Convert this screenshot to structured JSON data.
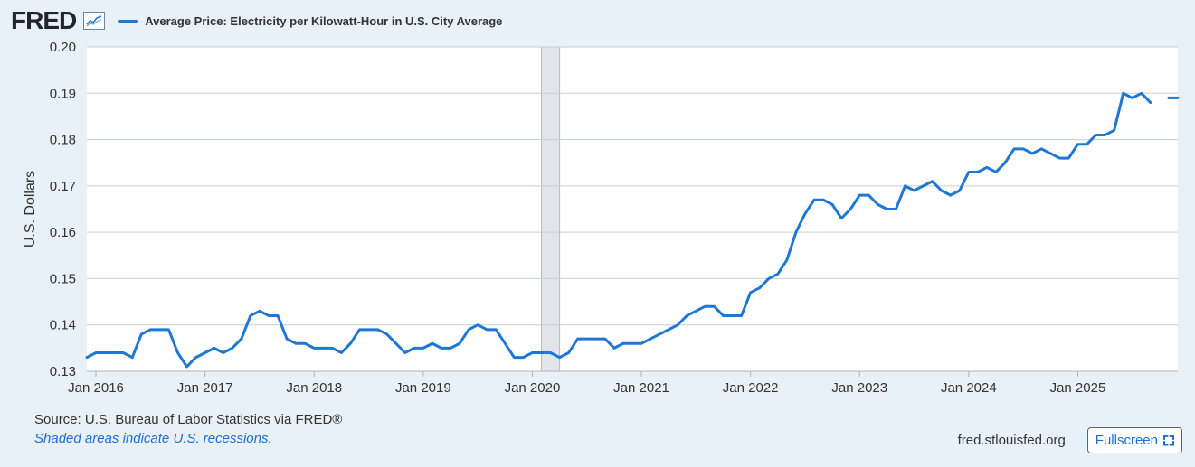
{
  "header": {
    "logo_text": "FRED",
    "logo_icon": "line-chart-icon",
    "legend_label": "Average Price: Electricity per Kilowatt-Hour in U.S. City Average",
    "legend_color": "#1f77d4"
  },
  "footer": {
    "source": "Source: U.S. Bureau of Labor Statistics via FRED®",
    "note": "Shaded areas indicate U.S. recessions.",
    "site": "fred.stlouisfed.org",
    "fullscreen_label": "Fullscreen",
    "fullscreen_icon": "fullscreen-icon"
  },
  "chart_data": {
    "type": "line",
    "ylabel": "U.S. Dollars",
    "ylim": [
      0.13,
      0.2
    ],
    "yticks": [
      0.13,
      0.14,
      0.15,
      0.16,
      0.17,
      0.18,
      0.19,
      0.2
    ],
    "ytick_labels": [
      "0.13",
      "0.14",
      "0.15",
      "0.16",
      "0.17",
      "0.18",
      "0.19",
      "0.20"
    ],
    "xlim": [
      "2015-12",
      "2025-12"
    ],
    "xtick_labels": [
      "Jan 2016",
      "Jan 2017",
      "Jan 2018",
      "Jan 2019",
      "Jan 2020",
      "Jan 2021",
      "Jan 2022",
      "Jan 2023",
      "Jan 2024",
      "Jan 2025"
    ],
    "grid": true,
    "recession_shading": [
      {
        "start": "2020-02",
        "end": "2020-04"
      }
    ],
    "line_color": "#1f77d4",
    "series": [
      {
        "values": [
          {
            "date": "2015-12",
            "value": 0.133
          },
          {
            "date": "2016-01",
            "value": 0.134
          },
          {
            "date": "2016-02",
            "value": 0.134
          },
          {
            "date": "2016-03",
            "value": 0.134
          },
          {
            "date": "2016-04",
            "value": 0.134
          },
          {
            "date": "2016-05",
            "value": 0.133
          },
          {
            "date": "2016-06",
            "value": 0.138
          },
          {
            "date": "2016-07",
            "value": 0.139
          },
          {
            "date": "2016-08",
            "value": 0.139
          },
          {
            "date": "2016-09",
            "value": 0.139
          },
          {
            "date": "2016-10",
            "value": 0.134
          },
          {
            "date": "2016-11",
            "value": 0.131
          },
          {
            "date": "2016-12",
            "value": 0.133
          },
          {
            "date": "2017-01",
            "value": 0.134
          },
          {
            "date": "2017-02",
            "value": 0.135
          },
          {
            "date": "2017-03",
            "value": 0.134
          },
          {
            "date": "2017-04",
            "value": 0.135
          },
          {
            "date": "2017-05",
            "value": 0.137
          },
          {
            "date": "2017-06",
            "value": 0.142
          },
          {
            "date": "2017-07",
            "value": 0.143
          },
          {
            "date": "2017-08",
            "value": 0.142
          },
          {
            "date": "2017-09",
            "value": 0.142
          },
          {
            "date": "2017-10",
            "value": 0.137
          },
          {
            "date": "2017-11",
            "value": 0.136
          },
          {
            "date": "2017-12",
            "value": 0.136
          },
          {
            "date": "2018-01",
            "value": 0.135
          },
          {
            "date": "2018-02",
            "value": 0.135
          },
          {
            "date": "2018-03",
            "value": 0.135
          },
          {
            "date": "2018-04",
            "value": 0.134
          },
          {
            "date": "2018-05",
            "value": 0.136
          },
          {
            "date": "2018-06",
            "value": 0.139
          },
          {
            "date": "2018-07",
            "value": 0.139
          },
          {
            "date": "2018-08",
            "value": 0.139
          },
          {
            "date": "2018-09",
            "value": 0.138
          },
          {
            "date": "2018-10",
            "value": 0.136
          },
          {
            "date": "2018-11",
            "value": 0.134
          },
          {
            "date": "2018-12",
            "value": 0.135
          },
          {
            "date": "2019-01",
            "value": 0.135
          },
          {
            "date": "2019-02",
            "value": 0.136
          },
          {
            "date": "2019-03",
            "value": 0.135
          },
          {
            "date": "2019-04",
            "value": 0.135
          },
          {
            "date": "2019-05",
            "value": 0.136
          },
          {
            "date": "2019-06",
            "value": 0.139
          },
          {
            "date": "2019-07",
            "value": 0.14
          },
          {
            "date": "2019-08",
            "value": 0.139
          },
          {
            "date": "2019-09",
            "value": 0.139
          },
          {
            "date": "2019-10",
            "value": 0.136
          },
          {
            "date": "2019-11",
            "value": 0.133
          },
          {
            "date": "2019-12",
            "value": 0.133
          },
          {
            "date": "2020-01",
            "value": 0.134
          },
          {
            "date": "2020-02",
            "value": 0.134
          },
          {
            "date": "2020-03",
            "value": 0.134
          },
          {
            "date": "2020-04",
            "value": 0.133
          },
          {
            "date": "2020-05",
            "value": 0.134
          },
          {
            "date": "2020-06",
            "value": 0.137
          },
          {
            "date": "2020-07",
            "value": 0.137
          },
          {
            "date": "2020-08",
            "value": 0.137
          },
          {
            "date": "2020-09",
            "value": 0.137
          },
          {
            "date": "2020-10",
            "value": 0.135
          },
          {
            "date": "2020-11",
            "value": 0.136
          },
          {
            "date": "2020-12",
            "value": 0.136
          },
          {
            "date": "2021-01",
            "value": 0.136
          },
          {
            "date": "2021-02",
            "value": 0.137
          },
          {
            "date": "2021-03",
            "value": 0.138
          },
          {
            "date": "2021-04",
            "value": 0.139
          },
          {
            "date": "2021-05",
            "value": 0.14
          },
          {
            "date": "2021-06",
            "value": 0.142
          },
          {
            "date": "2021-07",
            "value": 0.143
          },
          {
            "date": "2021-08",
            "value": 0.144
          },
          {
            "date": "2021-09",
            "value": 0.144
          },
          {
            "date": "2021-10",
            "value": 0.142
          },
          {
            "date": "2021-11",
            "value": 0.142
          },
          {
            "date": "2021-12",
            "value": 0.142
          },
          {
            "date": "2022-01",
            "value": 0.147
          },
          {
            "date": "2022-02",
            "value": 0.148
          },
          {
            "date": "2022-03",
            "value": 0.15
          },
          {
            "date": "2022-04",
            "value": 0.151
          },
          {
            "date": "2022-05",
            "value": 0.154
          },
          {
            "date": "2022-06",
            "value": 0.16
          },
          {
            "date": "2022-07",
            "value": 0.164
          },
          {
            "date": "2022-08",
            "value": 0.167
          },
          {
            "date": "2022-09",
            "value": 0.167
          },
          {
            "date": "2022-10",
            "value": 0.166
          },
          {
            "date": "2022-11",
            "value": 0.163
          },
          {
            "date": "2022-12",
            "value": 0.165
          },
          {
            "date": "2023-01",
            "value": 0.168
          },
          {
            "date": "2023-02",
            "value": 0.168
          },
          {
            "date": "2023-03",
            "value": 0.166
          },
          {
            "date": "2023-04",
            "value": 0.165
          },
          {
            "date": "2023-05",
            "value": 0.165
          },
          {
            "date": "2023-06",
            "value": 0.17
          },
          {
            "date": "2023-07",
            "value": 0.169
          },
          {
            "date": "2023-08",
            "value": 0.17
          },
          {
            "date": "2023-09",
            "value": 0.171
          },
          {
            "date": "2023-10",
            "value": 0.169
          },
          {
            "date": "2023-11",
            "value": 0.168
          },
          {
            "date": "2023-12",
            "value": 0.169
          },
          {
            "date": "2024-01",
            "value": 0.173
          },
          {
            "date": "2024-02",
            "value": 0.173
          },
          {
            "date": "2024-03",
            "value": 0.174
          },
          {
            "date": "2024-04",
            "value": 0.173
          },
          {
            "date": "2024-05",
            "value": 0.175
          },
          {
            "date": "2024-06",
            "value": 0.178
          },
          {
            "date": "2024-07",
            "value": 0.178
          },
          {
            "date": "2024-08",
            "value": 0.177
          },
          {
            "date": "2024-09",
            "value": 0.178
          },
          {
            "date": "2024-10",
            "value": 0.177
          },
          {
            "date": "2024-11",
            "value": 0.176
          },
          {
            "date": "2024-12",
            "value": 0.176
          },
          {
            "date": "2025-01",
            "value": 0.179
          },
          {
            "date": "2025-02",
            "value": 0.179
          },
          {
            "date": "2025-03",
            "value": 0.181
          },
          {
            "date": "2025-04",
            "value": 0.181
          },
          {
            "date": "2025-05",
            "value": 0.182
          },
          {
            "date": "2025-06",
            "value": 0.19
          },
          {
            "date": "2025-07",
            "value": 0.189
          },
          {
            "date": "2025-08",
            "value": 0.19
          },
          {
            "date": "2025-09",
            "value": 0.188
          },
          {
            "date": "2025-10",
            "value": null
          },
          {
            "date": "2025-11",
            "value": 0.189
          },
          {
            "date": "2025-12",
            "value": 0.189
          }
        ]
      }
    ]
  }
}
